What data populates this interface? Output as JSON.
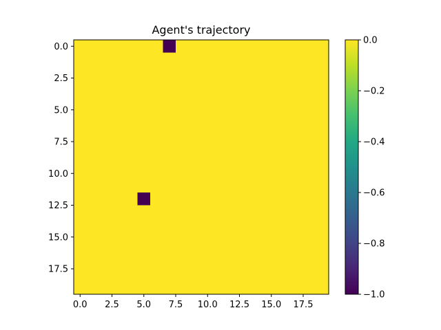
{
  "chart_data": {
    "type": "heatmap",
    "title": "Agent's trajectory",
    "xlabel": "",
    "ylabel": "",
    "grid": false,
    "rows": 20,
    "cols": 20,
    "default_value": 0.0,
    "cells": [
      {
        "row": 0,
        "col": 7,
        "value": -1.0
      },
      {
        "row": 12,
        "col": 5,
        "value": -1.0
      }
    ],
    "x_ticks": [
      0.0,
      2.5,
      5.0,
      7.5,
      10.0,
      12.5,
      15.0,
      17.5
    ],
    "x_tick_labels": [
      "0.0",
      "2.5",
      "5.0",
      "7.5",
      "10.0",
      "12.5",
      "15.0",
      "17.5"
    ],
    "y_ticks": [
      0.0,
      2.5,
      5.0,
      7.5,
      10.0,
      12.5,
      15.0,
      17.5
    ],
    "y_tick_labels": [
      "0.0",
      "2.5",
      "5.0",
      "7.5",
      "10.0",
      "12.5",
      "15.0",
      "17.5"
    ],
    "colormap": "viridis",
    "colorbar": {
      "range": [
        -1.0,
        0.0
      ],
      "ticks": [
        0.0,
        -0.2,
        -0.4,
        -0.6,
        -0.8,
        -1.0
      ],
      "tick_labels": [
        "0.0",
        "−0.2",
        "−0.4",
        "−0.6",
        "−0.8",
        "−1.0"
      ]
    },
    "colors": {
      "min": "#440154",
      "max": "#fde725"
    }
  }
}
